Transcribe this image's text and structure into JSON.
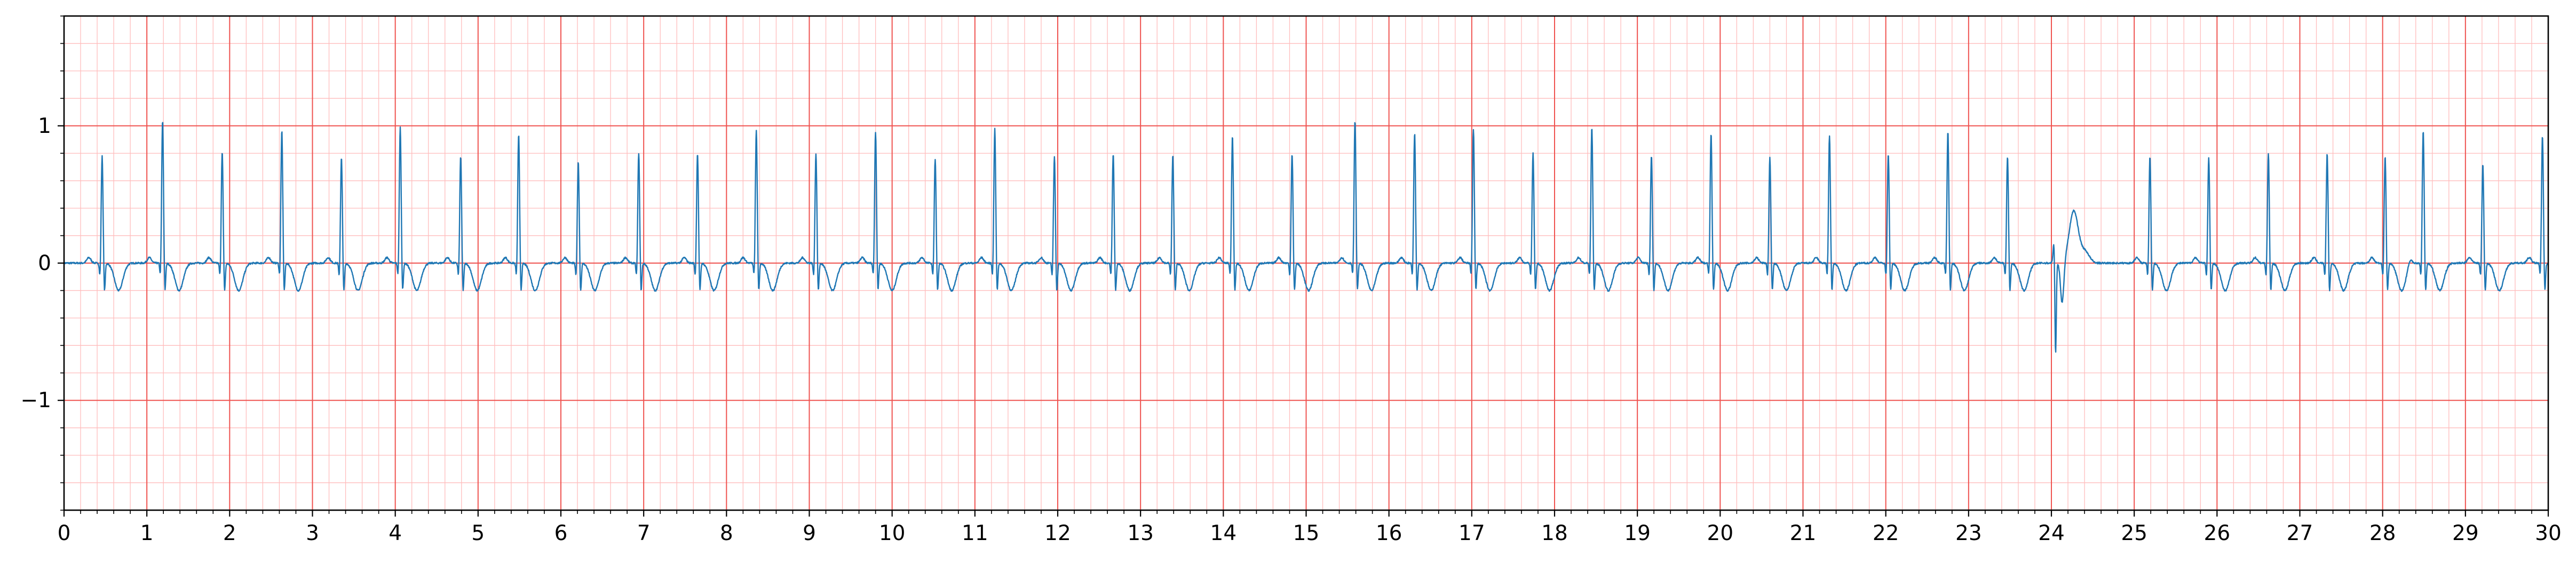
{
  "chart_data": {
    "type": "line",
    "title": "",
    "xlabel": "",
    "ylabel": "",
    "xlim": [
      0,
      30
    ],
    "ylim": [
      -1.8,
      1.8
    ],
    "x_ticks": [
      0,
      1,
      2,
      3,
      4,
      5,
      6,
      7,
      8,
      9,
      10,
      11,
      12,
      13,
      14,
      15,
      16,
      17,
      18,
      19,
      20,
      21,
      22,
      23,
      24,
      25,
      26,
      27,
      28,
      29,
      30
    ],
    "x_tick_labels": [
      "0",
      "1",
      "2",
      "3",
      "4",
      "5",
      "6",
      "7",
      "8",
      "9",
      "10",
      "11",
      "12",
      "13",
      "14",
      "15",
      "16",
      "17",
      "18",
      "19",
      "20",
      "21",
      "22",
      "23",
      "24",
      "25",
      "26",
      "27",
      "28",
      "29",
      "30"
    ],
    "y_ticks": [
      1,
      0,
      -1
    ],
    "y_tick_labels": [
      "1",
      "0",
      "−1"
    ],
    "grid": true,
    "grid_major": {
      "x_step": 1,
      "y_step": 1,
      "color": "#ef5350"
    },
    "grid_minor": {
      "x_step": 0.2,
      "y_step": 0.2,
      "color": "#ffbdbd"
    },
    "series": [
      {
        "color": "#1f77b4",
        "beats": [
          [
            0.46,
            0.78
          ],
          [
            1.19,
            1.04
          ],
          [
            1.91,
            0.81
          ],
          [
            2.63,
            0.97
          ],
          [
            3.35,
            0.77
          ],
          [
            4.06,
            0.99
          ],
          [
            4.79,
            0.78
          ],
          [
            5.49,
            0.94
          ],
          [
            6.21,
            0.74
          ],
          [
            6.94,
            0.8
          ],
          [
            7.65,
            0.8
          ],
          [
            8.36,
            0.97
          ],
          [
            9.08,
            0.8
          ],
          [
            9.8,
            0.96
          ],
          [
            10.52,
            0.76
          ],
          [
            11.24,
            0.98
          ],
          [
            11.96,
            0.78
          ],
          [
            12.67,
            0.8
          ],
          [
            13.39,
            0.79
          ],
          [
            14.11,
            0.93
          ],
          [
            14.83,
            0.8
          ],
          [
            15.59,
            1.04
          ],
          [
            16.31,
            0.95
          ],
          [
            17.02,
            0.98
          ],
          [
            17.74,
            0.8
          ],
          [
            18.45,
            0.99
          ],
          [
            19.17,
            0.79
          ],
          [
            19.89,
            0.95
          ],
          [
            20.6,
            0.77
          ],
          [
            21.32,
            0.93
          ],
          [
            22.03,
            0.8
          ],
          [
            22.75,
            0.96
          ],
          [
            23.47,
            0.78
          ],
          [
            25.19,
            0.78
          ],
          [
            25.9,
            0.77
          ],
          [
            26.62,
            0.8
          ],
          [
            27.33,
            0.8
          ],
          [
            28.03,
            0.78
          ],
          [
            28.49,
            0.97
          ],
          [
            29.21,
            0.73
          ],
          [
            29.93,
            0.93
          ]
        ],
        "ectopic_beat": {
          "x": 24.05,
          "min": -0.84,
          "peak": 0.38
        }
      }
    ]
  }
}
